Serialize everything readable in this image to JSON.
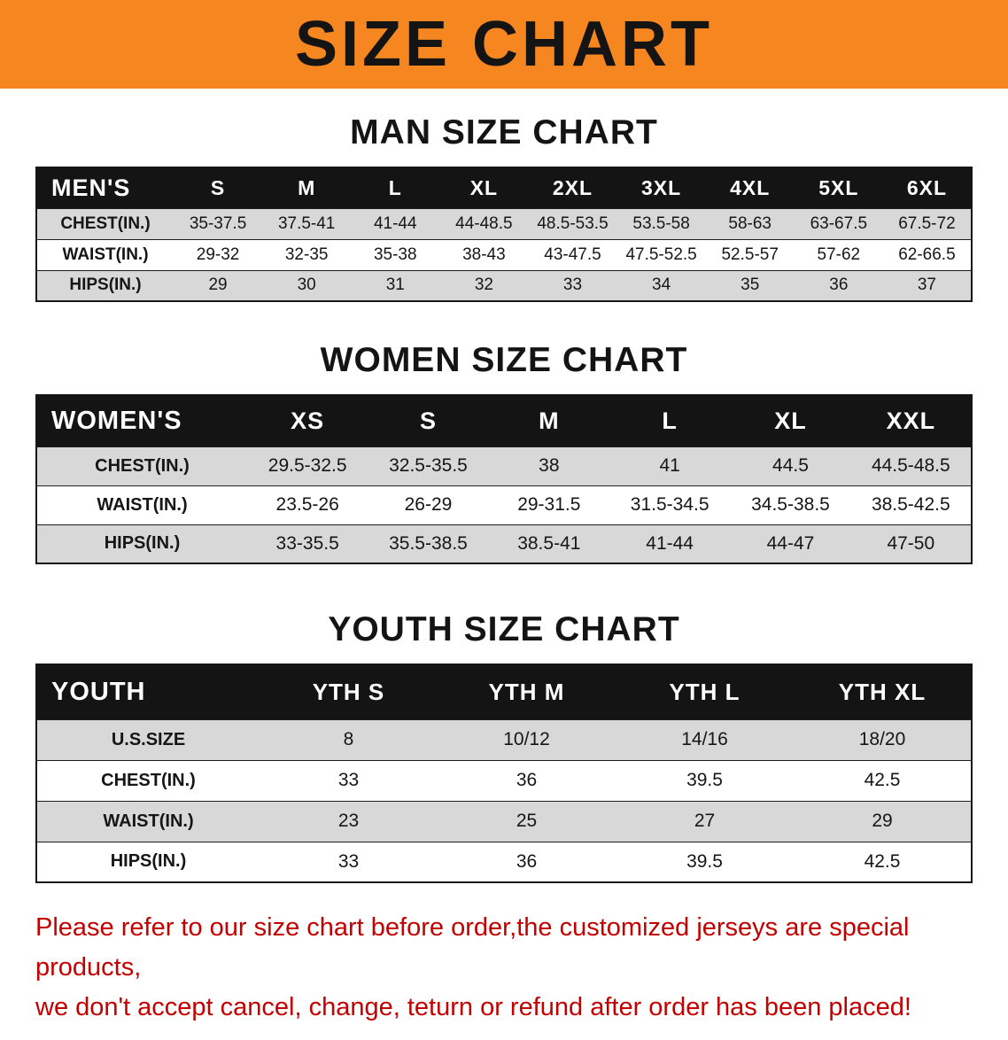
{
  "banner": {
    "title": "SIZE CHART"
  },
  "colors": {
    "banner-bg": "#f6861f",
    "table-header-bg": "#141414",
    "row-gray": "#d8d8d8",
    "row-white": "#ffffff",
    "footer-red": "#c40000",
    "ink": "#111111"
  },
  "sections": [
    {
      "heading": "MAN SIZE CHART",
      "table": {
        "header": [
          "MEN'S",
          "S",
          "M",
          "L",
          "XL",
          "2XL",
          "3XL",
          "4XL",
          "5XL",
          "6XL"
        ],
        "rows": [
          [
            "CHEST(IN.)",
            "35-37.5",
            "37.5-41",
            "41-44",
            "44-48.5",
            "48.5-53.5",
            "53.5-58",
            "58-63",
            "63-67.5",
            "67.5-72"
          ],
          [
            "WAIST(IN.)",
            "29-32",
            "32-35",
            "35-38",
            "38-43",
            "43-47.5",
            "47.5-52.5",
            "52.5-57",
            "57-62",
            "62-66.5"
          ],
          [
            "HIPS(IN.)",
            "29",
            "30",
            "31",
            "32",
            "33",
            "34",
            "35",
            "36",
            "37"
          ]
        ]
      }
    },
    {
      "heading": "WOMEN SIZE CHART",
      "table": {
        "header": [
          "WOMEN'S",
          "XS",
          "S",
          "M",
          "L",
          "XL",
          "XXL"
        ],
        "rows": [
          [
            "CHEST(IN.)",
            "29.5-32.5",
            "32.5-35.5",
            "38",
            "41",
            "44.5",
            "44.5-48.5"
          ],
          [
            "WAIST(IN.)",
            "23.5-26",
            "26-29",
            "29-31.5",
            "31.5-34.5",
            "34.5-38.5",
            "38.5-42.5"
          ],
          [
            "HIPS(IN.)",
            "33-35.5",
            "35.5-38.5",
            "38.5-41",
            "41-44",
            "44-47",
            "47-50"
          ]
        ]
      }
    },
    {
      "heading": "YOUTH SIZE CHART",
      "table": {
        "header": [
          "YOUTH",
          "YTH S",
          "YTH M",
          "YTH L",
          "YTH XL"
        ],
        "rows": [
          [
            "U.S.SIZE",
            "8",
            "10/12",
            "14/16",
            "18/20"
          ],
          [
            "CHEST(IN.)",
            "33",
            "36",
            "39.5",
            "42.5"
          ],
          [
            "WAIST(IN.)",
            "23",
            "25",
            "27",
            "29"
          ],
          [
            "HIPS(IN.)",
            "33",
            "36",
            "39.5",
            "42.5"
          ]
        ]
      }
    }
  ],
  "footer": {
    "line1": "Please refer to our size chart before order,the customized jerseys are special products,",
    "line2": "we don't accept cancel, change, teturn or refund after order has been placed!"
  }
}
